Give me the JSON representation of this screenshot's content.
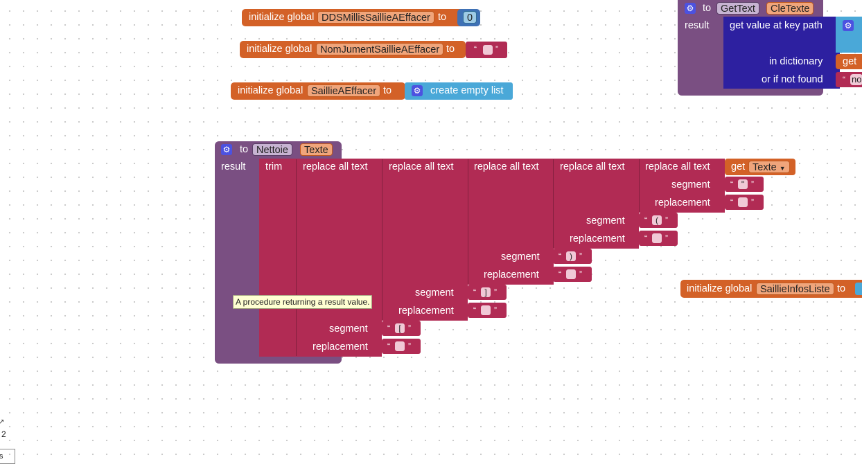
{
  "blocks": {
    "kw_initialize_global": "initialize global",
    "kw_to": "to",
    "kw_result": "result",
    "kw_get": "get",
    "global1": {
      "name": "DDSMillisSaillieAEffacer",
      "value": "0"
    },
    "global2": {
      "name": "NomJumentSaillieAEffacer"
    },
    "global3": {
      "name": "SaillieAEffacer",
      "value_label": "create empty list"
    },
    "global4": {
      "name": "SaillieInfosListe"
    },
    "gettext": {
      "proc_name": "GetText",
      "param": "CleTexte",
      "get_value": "get value at key path",
      "in_dictionary": "in dictionary",
      "or_if_not_found": "or if not found",
      "get_partial": "get",
      "not_found_partial": "no"
    },
    "nettoie": {
      "proc_name": "Nettoie",
      "param": "Texte",
      "trim": "trim",
      "replace_all": "replace all text",
      "segment": "segment",
      "replacement": "replacement",
      "get_var": "Texte",
      "segments": [
        "\"",
        "(",
        ")",
        "]",
        "["
      ]
    },
    "tooltip": "A procedure returning a result value.",
    "corner": {
      "digit": "2",
      "label": "s"
    }
  },
  "colors": {
    "variables": "#d36127",
    "procedures": "#7a4f82",
    "text": "#b12b54",
    "dictionaries": "#2d20a0",
    "lists": "#4aa8d8",
    "math": "#3f71b5"
  }
}
